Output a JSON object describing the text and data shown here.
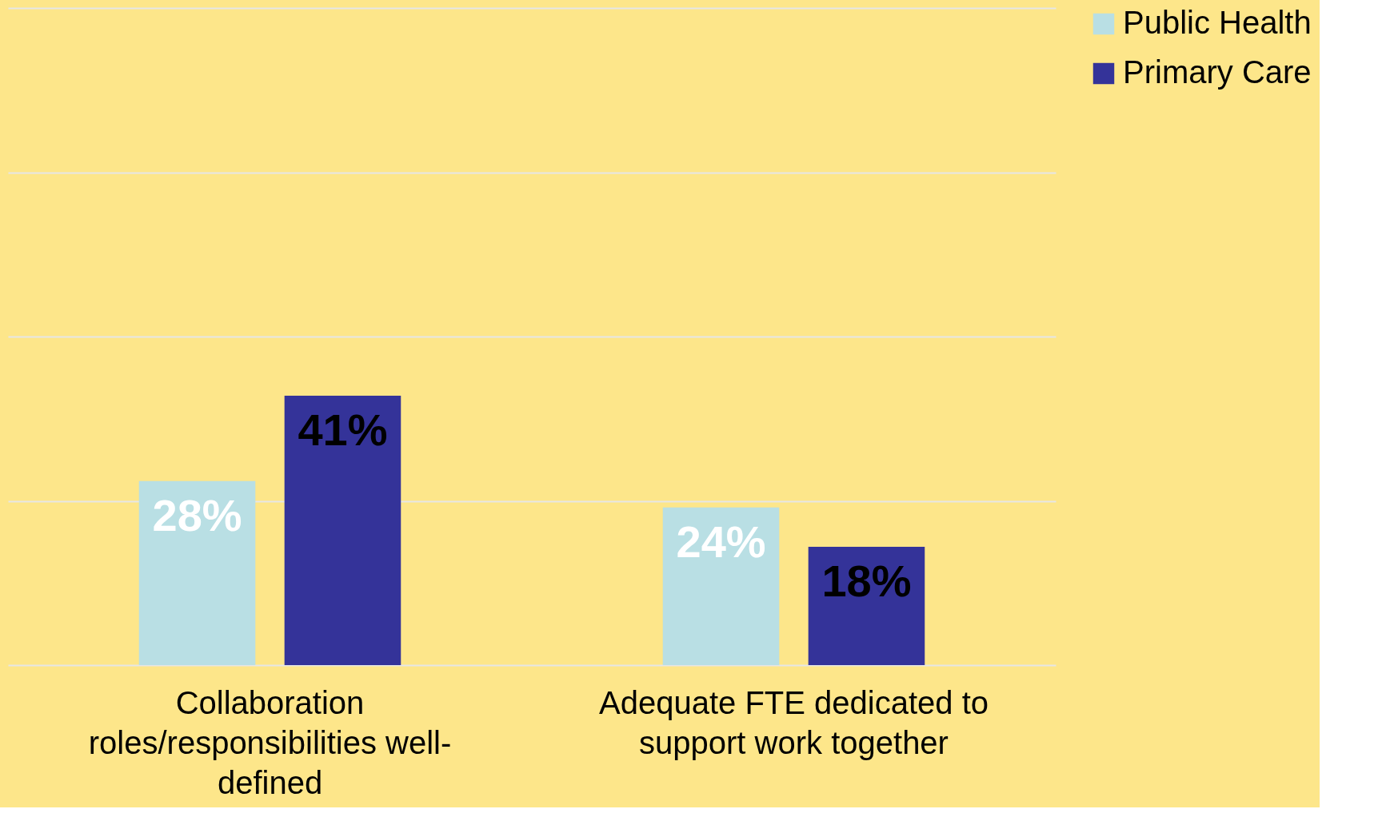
{
  "chart_data": {
    "type": "bar",
    "categories": [
      "Collaboration roles/responsibilities well-defined",
      "Adequate FTE dedicated to support work together"
    ],
    "series": [
      {
        "name": "Public Health",
        "color": "#b9dfe4",
        "values": [
          28,
          24
        ],
        "value_labels": [
          "28%",
          "24%"
        ]
      },
      {
        "name": "Primary Care",
        "color": "#343399",
        "values": [
          41,
          18
        ],
        "value_labels": [
          "41%",
          "18%"
        ]
      }
    ],
    "ylim": [
      0,
      100
    ],
    "yticks": [
      {
        "value": 0,
        "label": null
      },
      {
        "value": 25,
        "label": null
      },
      {
        "value": 50,
        "label": null
      },
      {
        "value": 75,
        "label": null
      },
      {
        "value": 100,
        "label": null
      }
    ],
    "tick_labels": "x",
    "grid": "y",
    "legend": "right"
  }
}
